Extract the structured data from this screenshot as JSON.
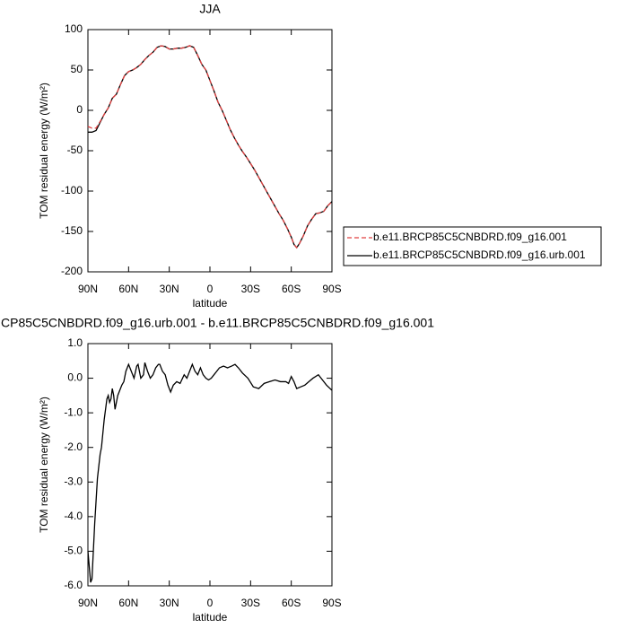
{
  "chart_data": [
    {
      "type": "line",
      "title": "JJA",
      "xlabel": "latitude",
      "ylabel": "TOM residual energy (W/m²)",
      "x": [
        90,
        87,
        84,
        81,
        78,
        75,
        72,
        69,
        66,
        63,
        60,
        57,
        54,
        51,
        48,
        45,
        42,
        39,
        36,
        33,
        30,
        27,
        24,
        21,
        18,
        15,
        12,
        9,
        6,
        3,
        0,
        -3,
        -6,
        -9,
        -12,
        -15,
        -18,
        -21,
        -24,
        -27,
        -30,
        -33,
        -36,
        -39,
        -42,
        -45,
        -48,
        -51,
        -54,
        -57,
        -60,
        -62,
        -64,
        -66,
        -69,
        -72,
        -75,
        -78,
        -81,
        -84,
        -87,
        -90
      ],
      "series": [
        {
          "name": "b.e11.BRCP85C5CNBDRD.f09_g16.001",
          "color": "#e04040",
          "linestyle": "dashed",
          "values": [
            -20,
            -22,
            -22,
            -14,
            -5,
            3,
            15,
            20,
            32,
            43,
            48,
            50,
            53,
            57,
            63,
            68,
            72,
            78,
            80,
            79,
            76,
            76,
            77,
            77,
            78,
            80,
            78,
            68,
            57,
            50,
            37,
            24,
            10,
            0,
            -12,
            -24,
            -34,
            -43,
            -51,
            -58,
            -66,
            -74,
            -83,
            -92,
            -101,
            -110,
            -119,
            -128,
            -136,
            -146,
            -157,
            -166,
            -170,
            -165,
            -155,
            -143,
            -135,
            -128,
            -127,
            -125,
            -118,
            -113
          ]
        },
        {
          "name": "b.e11.BRCP85C5CNBDRD.f09_g16.urb.001",
          "color": "#000000",
          "linestyle": "solid",
          "values": [
            -27,
            -27,
            -25,
            -15,
            -5,
            3,
            15,
            20,
            32,
            43,
            48,
            50,
            53,
            57,
            63,
            68,
            72,
            78,
            80,
            79,
            76,
            76,
            77,
            77,
            78,
            80,
            78,
            68,
            57,
            50,
            37,
            24,
            10,
            0,
            -12,
            -24,
            -34,
            -43,
            -51,
            -58,
            -66,
            -74,
            -83,
            -92,
            -101,
            -110,
            -119,
            -128,
            -136,
            -146,
            -157,
            -166,
            -170,
            -165,
            -155,
            -143,
            -135,
            -128,
            -127,
            -125,
            -118,
            -113
          ]
        }
      ],
      "xlim": [
        90,
        -90
      ],
      "xticks": [
        {
          "value": 90,
          "label": "90N"
        },
        {
          "value": 60,
          "label": "60N"
        },
        {
          "value": 30,
          "label": "30N"
        },
        0,
        {
          "value": -30,
          "label": "30S"
        },
        {
          "value": -60,
          "label": "60S"
        },
        {
          "value": -90,
          "label": "90S"
        }
      ],
      "ylim": [
        -200,
        100
      ],
      "yticks": [
        100,
        50,
        0,
        -50,
        -100,
        -150,
        -200
      ],
      "legend": "right"
    },
    {
      "type": "line",
      "title": "CP85C5CNBDRD.f09_g16.urb.001 - b.e11.BRCP85C5CNBDRD.f09_g16.001",
      "xlabel": "latitude",
      "ylabel": "TOM residual energy (W/m²)",
      "x": [
        90,
        88,
        87,
        85,
        83,
        81,
        80,
        78,
        76,
        75,
        74,
        73,
        72,
        71,
        70,
        69,
        68,
        66,
        65,
        63.5,
        62,
        60,
        58,
        56,
        54,
        53,
        51,
        49,
        48,
        46,
        44,
        42,
        40,
        38,
        37,
        35,
        33,
        31,
        29,
        27,
        24.5,
        22,
        19,
        17,
        15,
        13,
        11,
        9,
        7,
        5,
        3,
        1,
        -1,
        -3,
        -5,
        -7,
        -10,
        -13,
        -16,
        -18.5,
        -21,
        -24,
        -28,
        -32,
        -36,
        -40,
        -44,
        -48,
        -52,
        -56,
        -58,
        -60,
        -62,
        -64,
        -67,
        -70,
        -73,
        -76,
        -80,
        -83,
        -86,
        -90
      ],
      "values": [
        -5.0,
        -5.9,
        -5.8,
        -4.2,
        -2.9,
        -2.2,
        -2.0,
        -1.2,
        -0.6,
        -0.5,
        -0.7,
        -0.6,
        -0.3,
        -0.5,
        -0.9,
        -0.7,
        -0.5,
        -0.3,
        -0.2,
        -0.1,
        0.2,
        0.4,
        0.2,
        0.0,
        0.35,
        0.4,
        0.0,
        0.1,
        0.45,
        0.2,
        0.0,
        0.1,
        0.3,
        0.4,
        0.4,
        0.2,
        0.1,
        -0.2,
        -0.4,
        -0.2,
        -0.1,
        -0.15,
        0.1,
        0.0,
        0.2,
        0.4,
        0.2,
        0.1,
        0.3,
        0.1,
        0.0,
        -0.05,
        0.0,
        0.1,
        0.2,
        0.3,
        0.35,
        0.3,
        0.35,
        0.4,
        0.3,
        0.15,
        0.0,
        -0.25,
        -0.3,
        -0.15,
        -0.1,
        -0.05,
        -0.1,
        -0.1,
        -0.15,
        0.05,
        -0.1,
        -0.3,
        -0.25,
        -0.2,
        -0.1,
        0.0,
        0.1,
        -0.05,
        -0.2,
        -0.35
      ],
      "color": "#000000",
      "xlim": [
        90,
        -90
      ],
      "xticks": [
        {
          "value": 90,
          "label": "90N"
        },
        {
          "value": 60,
          "label": "60N"
        },
        {
          "value": 30,
          "label": "30N"
        },
        0,
        {
          "value": -30,
          "label": "30S"
        },
        {
          "value": -60,
          "label": "60S"
        },
        {
          "value": -90,
          "label": "90S"
        }
      ],
      "ylim": [
        -6,
        1
      ],
      "yticks": [
        {
          "value": 1,
          "label": "1.0"
        },
        {
          "value": 0,
          "label": "0.0"
        },
        {
          "value": -1,
          "label": "-1.0"
        },
        {
          "value": -2,
          "label": "-2.0"
        },
        {
          "value": -3,
          "label": "-3.0"
        },
        {
          "value": -4,
          "label": "-4.0"
        },
        {
          "value": -5,
          "label": "-5.0"
        },
        {
          "value": -6,
          "label": "-6.0"
        }
      ]
    }
  ]
}
